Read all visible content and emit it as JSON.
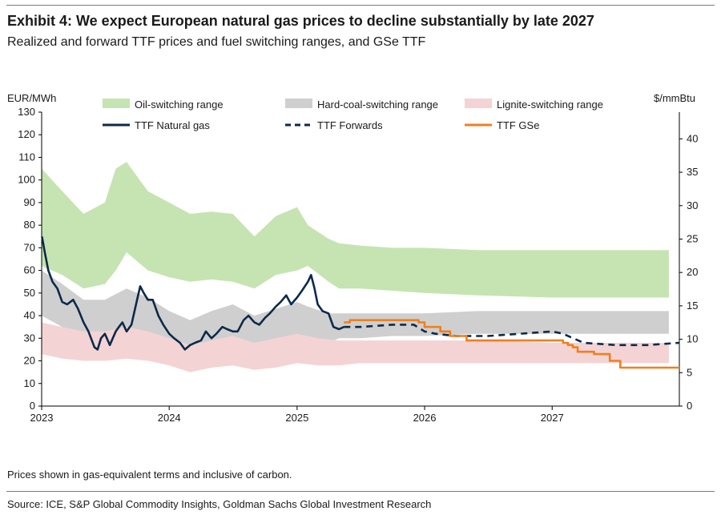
{
  "header": {
    "title": "Exhibit 4: We expect European natural gas prices to decline substantially by late 2027",
    "subtitle": "Realized and forward TTF prices and fuel switching ranges, and GSe TTF"
  },
  "footer": {
    "note": "Prices shown in gas-equivalent terms and inclusive of carbon.",
    "source": "Source: ICE, S&P Global Commodity Insights, Goldman Sachs Global Investment Research"
  },
  "colors": {
    "oil": "#c5e4b1",
    "coal": "#cfcfcf",
    "lignite": "#f4d3d4",
    "ttf": "#0b2a4a",
    "forwards": "#0b2a4a",
    "gse": "#f07f1f"
  },
  "chart_data": {
    "type": "area",
    "title": "",
    "ylabel_left": "EUR/MWh",
    "ylabel_right": "$/mmBtu",
    "ylim_left": [
      0,
      130
    ],
    "ylim_right": [
      0,
      44
    ],
    "xlim": [
      "2023-01-01",
      "2027-12-31"
    ],
    "x_ticks": [
      "2023",
      "2024",
      "2025",
      "2026",
      "2027"
    ],
    "y_ticks_left": [
      0,
      10,
      20,
      30,
      40,
      50,
      60,
      70,
      80,
      90,
      100,
      110,
      120,
      130
    ],
    "y_ticks_right": [
      0,
      5,
      10,
      15,
      20,
      25,
      30,
      35,
      40
    ],
    "legend": [
      "Oil-switching range",
      "Hard-coal-switching range",
      "Lignite-switching range",
      "TTF Natural gas",
      "TTF Forwards",
      "TTF GSe"
    ],
    "legend_position": "top",
    "grid": false,
    "bands": [
      {
        "name": "Oil-switching range",
        "x": [
          "2023-01",
          "2023-03",
          "2023-05",
          "2023-07",
          "2023-08",
          "2023-09",
          "2023-11",
          "2024-01",
          "2024-03",
          "2024-05",
          "2024-07",
          "2024-09",
          "2024-11",
          "2025-01",
          "2025-02",
          "2025-04",
          "2025-05",
          "2025-07",
          "2025-10",
          "2026-01",
          "2026-06",
          "2027-01",
          "2027-06",
          "2027-12"
        ],
        "low": [
          62,
          58,
          52,
          54,
          60,
          68,
          60,
          57,
          55,
          56,
          55,
          52,
          58,
          60,
          62,
          55,
          52,
          52,
          51,
          50,
          49,
          48,
          48,
          48
        ],
        "high": [
          105,
          95,
          85,
          90,
          105,
          108,
          95,
          90,
          85,
          86,
          85,
          75,
          84,
          88,
          80,
          74,
          72,
          71,
          70,
          70,
          69,
          69,
          69,
          69
        ]
      },
      {
        "name": "Hard-coal-switching range",
        "x": [
          "2023-01",
          "2023-03",
          "2023-05",
          "2023-07",
          "2023-09",
          "2023-11",
          "2024-01",
          "2024-03",
          "2024-05",
          "2024-07",
          "2024-09",
          "2024-11",
          "2025-01",
          "2025-02",
          "2025-04",
          "2025-05",
          "2025-07",
          "2025-10",
          "2026-01",
          "2026-06",
          "2027-01",
          "2027-06",
          "2027-12"
        ],
        "low": [
          40,
          35,
          30,
          30,
          33,
          31,
          27,
          25,
          28,
          29,
          26,
          28,
          31,
          30,
          28,
          30,
          30,
          31,
          31,
          32,
          32,
          32,
          32
        ],
        "high": [
          60,
          54,
          47,
          47,
          52,
          48,
          42,
          38,
          42,
          45,
          40,
          43,
          46,
          44,
          41,
          41,
          41,
          41,
          41,
          42,
          42,
          42,
          42
        ]
      },
      {
        "name": "Lignite-switching range",
        "x": [
          "2023-01",
          "2023-03",
          "2023-05",
          "2023-07",
          "2023-09",
          "2023-11",
          "2024-01",
          "2024-03",
          "2024-05",
          "2024-07",
          "2024-09",
          "2024-11",
          "2025-01",
          "2025-03",
          "2025-05",
          "2025-07",
          "2025-10",
          "2026-01",
          "2026-06",
          "2027-01",
          "2027-06",
          "2027-12"
        ],
        "low": [
          23,
          21,
          20,
          20,
          21,
          20,
          18,
          15,
          17,
          18,
          16,
          17,
          19,
          18,
          18,
          19,
          19,
          19,
          19,
          19,
          19,
          19
        ],
        "high": [
          37,
          35,
          33,
          33,
          35,
          33,
          30,
          27,
          29,
          31,
          28,
          30,
          32,
          30,
          29,
          29,
          29,
          29,
          29,
          28,
          28,
          28
        ]
      }
    ],
    "series": [
      {
        "name": "TTF Natural gas",
        "style": "solid",
        "x": [
          "2023-01-02",
          "2023-01-10",
          "2023-01-20",
          "2023-02-01",
          "2023-02-15",
          "2023-03-01",
          "2023-03-15",
          "2023-04-01",
          "2023-04-15",
          "2023-05-01",
          "2023-05-15",
          "2023-06-01",
          "2023-06-10",
          "2023-06-20",
          "2023-07-01",
          "2023-07-15",
          "2023-08-01",
          "2023-08-10",
          "2023-08-20",
          "2023-09-01",
          "2023-09-15",
          "2023-10-01",
          "2023-10-10",
          "2023-10-20",
          "2023-11-01",
          "2023-11-15",
          "2023-12-01",
          "2023-12-15",
          "2024-01-01",
          "2024-01-15",
          "2024-02-01",
          "2024-02-15",
          "2024-03-01",
          "2024-03-15",
          "2024-04-01",
          "2024-04-15",
          "2024-05-01",
          "2024-05-15",
          "2024-06-01",
          "2024-06-15",
          "2024-07-01",
          "2024-07-15",
          "2024-08-01",
          "2024-08-15",
          "2024-09-01",
          "2024-09-15",
          "2024-10-01",
          "2024-10-15",
          "2024-11-01",
          "2024-11-15",
          "2024-12-01",
          "2024-12-15",
          "2025-01-01",
          "2025-01-15",
          "2025-02-01",
          "2025-02-10",
          "2025-02-20",
          "2025-03-01",
          "2025-03-15",
          "2025-04-01",
          "2025-04-15",
          "2025-05-01",
          "2025-05-15"
        ],
        "y": [
          75,
          68,
          60,
          55,
          52,
          46,
          45,
          47,
          43,
          37,
          33,
          26,
          25,
          30,
          32,
          27,
          33,
          35,
          37,
          33,
          36,
          47,
          53,
          50,
          47,
          47,
          40,
          36,
          32,
          30,
          28,
          25,
          27,
          28,
          29,
          33,
          30,
          32,
          35,
          34,
          33,
          33,
          38,
          40,
          37,
          36,
          39,
          41,
          44,
          46,
          49,
          45,
          48,
          51,
          55,
          58,
          52,
          45,
          42,
          41,
          35,
          34,
          35
        ]
      },
      {
        "name": "TTF Forwards",
        "style": "dashed",
        "x": [
          "2025-05-15",
          "2025-07-01",
          "2025-10-01",
          "2025-12-01",
          "2026-01-01",
          "2026-02-01",
          "2026-04-01",
          "2026-07-01",
          "2026-10-01",
          "2027-01-01",
          "2027-02-01",
          "2027-04-01",
          "2027-07-01",
          "2027-10-01",
          "2027-12-31"
        ],
        "y": [
          35,
          35,
          36,
          36,
          33,
          32,
          31,
          31,
          32,
          33,
          32,
          28,
          27,
          27,
          28
        ]
      },
      {
        "name": "TTF GSe",
        "style": "solid",
        "x": [
          "2025-05-15",
          "2025-06-01",
          "2025-12-15",
          "2026-01-01",
          "2026-02-15",
          "2026-03-15",
          "2026-05-01",
          "2027-01-15",
          "2027-02-01",
          "2027-02-15",
          "2027-03-01",
          "2027-03-15",
          "2027-05-01",
          "2027-06-15",
          "2027-07-15",
          "2027-12-31"
        ],
        "y": [
          37,
          38,
          37,
          35,
          33,
          31,
          29,
          29,
          28,
          27,
          26,
          24,
          23,
          20,
          17,
          17
        ]
      }
    ]
  }
}
